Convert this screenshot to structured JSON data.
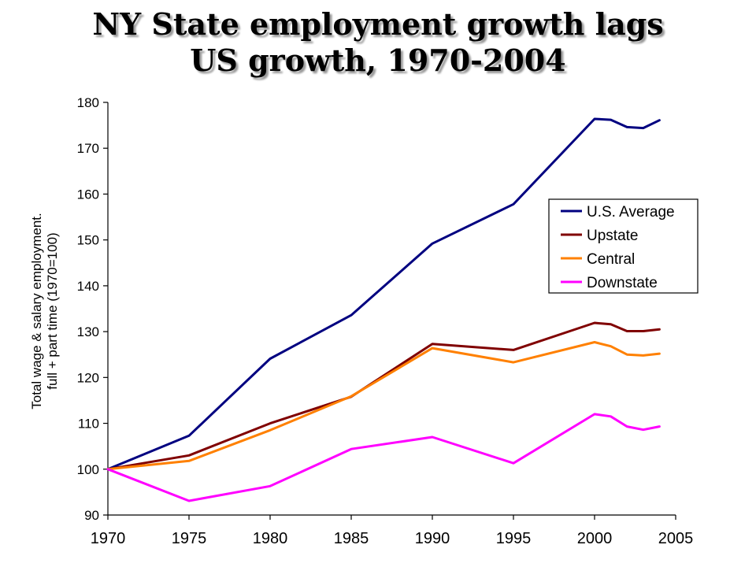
{
  "title_line1": "NY State employment growth lags",
  "title_line2": "US growth, 1970-2004",
  "chart_data": {
    "type": "line",
    "title": "NY State employment growth lags US growth, 1970-2004",
    "ylabel_line1": "Total wage & salary employment.",
    "ylabel_line2": "full + part time (1970=100)",
    "xlabel": "",
    "xlim": [
      1970,
      2005
    ],
    "ylim": [
      90,
      180
    ],
    "xticks": [
      1970,
      1975,
      1980,
      1985,
      1990,
      1995,
      2000,
      2005
    ],
    "yticks": [
      90,
      100,
      110,
      120,
      130,
      140,
      150,
      160,
      170,
      180
    ],
    "grid": false,
    "legend_position": "right",
    "series": [
      {
        "name": "U.S. Average",
        "color": "#000080",
        "x": [
          1970,
          1975,
          1980,
          1985,
          1990,
          1995,
          2000,
          2001,
          2002,
          2003,
          2004
        ],
        "y": [
          100,
          107.3,
          124.1,
          133.6,
          149.2,
          157.8,
          176.4,
          176.2,
          174.6,
          174.4,
          176.1
        ]
      },
      {
        "name": "Upstate",
        "color": "#800000",
        "x": [
          1970,
          1975,
          1980,
          1985,
          1990,
          1995,
          2000,
          2001,
          2002,
          2003,
          2004
        ],
        "y": [
          100,
          103.0,
          110.0,
          115.8,
          127.3,
          126.0,
          131.9,
          131.6,
          130.1,
          130.1,
          130.5
        ]
      },
      {
        "name": "Central",
        "color": "#ff8000",
        "x": [
          1970,
          1975,
          1980,
          1985,
          1990,
          1995,
          2000,
          2001,
          2002,
          2003,
          2004
        ],
        "y": [
          100,
          101.8,
          108.5,
          115.9,
          126.4,
          123.3,
          127.7,
          126.8,
          125.0,
          124.8,
          125.2
        ]
      },
      {
        "name": "Downstate",
        "color": "#ff00ff",
        "x": [
          1970,
          1975,
          1980,
          1985,
          1990,
          1995,
          2000,
          2001,
          2002,
          2003,
          2004
        ],
        "y": [
          100,
          93.1,
          96.3,
          104.4,
          107.0,
          101.3,
          112.0,
          111.5,
          109.3,
          108.6,
          109.3
        ]
      }
    ]
  }
}
